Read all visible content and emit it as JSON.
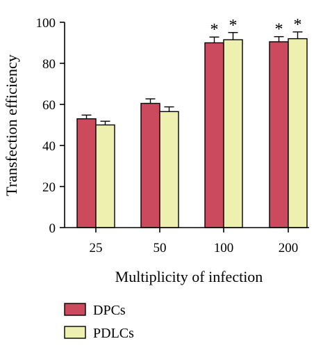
{
  "chart_data": {
    "type": "bar",
    "xlabel": "Multiplicity of infection",
    "ylabel": "Transfection efficiency",
    "ylim": [
      0,
      100
    ],
    "yticks": [
      0,
      20,
      40,
      60,
      80,
      100
    ],
    "categories": [
      "25",
      "50",
      "100",
      "200"
    ],
    "series": [
      {
        "name": "DPCs",
        "color": "#cc4a5e",
        "values": [
          53,
          60.5,
          90,
          90.5
        ],
        "errors": [
          1.8,
          2.2,
          2.8,
          2.5
        ],
        "significance": [
          "",
          "",
          "*",
          "*"
        ]
      },
      {
        "name": "PDLCs",
        "color": "#eef0b0",
        "values": [
          50,
          56.5,
          91.5,
          92
        ],
        "errors": [
          1.8,
          2.3,
          3.5,
          3.3
        ],
        "significance": [
          "",
          "",
          "*",
          "*"
        ]
      }
    ],
    "grid": false,
    "legend_position": "bottom-left"
  }
}
